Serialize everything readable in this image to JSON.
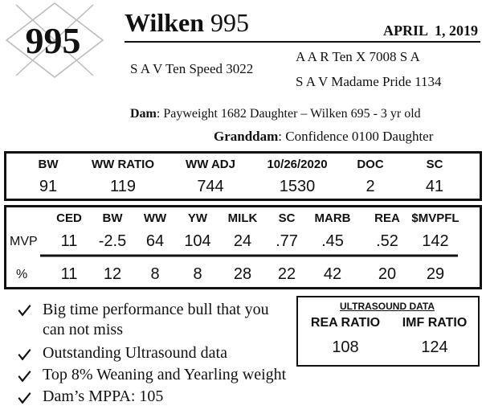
{
  "header": {
    "lot": "995",
    "name": "Wilken",
    "number": "995",
    "date": "APRIL  1, 2019"
  },
  "pedigree": {
    "sire": "S A V Ten Speed 3022",
    "dam_sire_line1": "A A R Ten X 7008 S A",
    "dam_sire_line2": "S A V Madame Pride 1134",
    "dam_label": "Dam",
    "dam": ": Payweight 1682 Daughter – Wilken 695 - 3 yr old",
    "granddam_label": "Granddam",
    "granddam": ": Confidence 0100 Daughter"
  },
  "performance": {
    "headers": [
      "BW",
      "WW RATIO",
      "WW ADJ",
      "10/26/2020",
      "DOC",
      "SC"
    ],
    "values": [
      "91",
      "119",
      "744",
      "1530",
      "2",
      "41"
    ]
  },
  "epds": {
    "headers": [
      "CED",
      "BW",
      "WW",
      "YW",
      "MILK",
      "SC",
      "MARB",
      "REA",
      "$MVPFL"
    ],
    "row_labels": [
      "MVP",
      "%"
    ],
    "rows": [
      [
        "11",
        "-2.5",
        "64",
        "104",
        "24",
        ".77",
        ".45",
        ".52",
        "142"
      ],
      [
        "11",
        "12",
        "8",
        "8",
        "28",
        "22",
        "42",
        "20",
        "29"
      ]
    ]
  },
  "bullets": [
    "Big time performance bull that you can not miss",
    "Outstanding Ultrasound data",
    "Top 8% Weaning and Yearling weight",
    "Dam’s MPPA: 105"
  ],
  "ultrasound": {
    "title": "ULTRASOUND DATA",
    "headers": [
      "REA RATIO",
      "IMF RATIO"
    ],
    "values": [
      "108",
      "124"
    ]
  }
}
